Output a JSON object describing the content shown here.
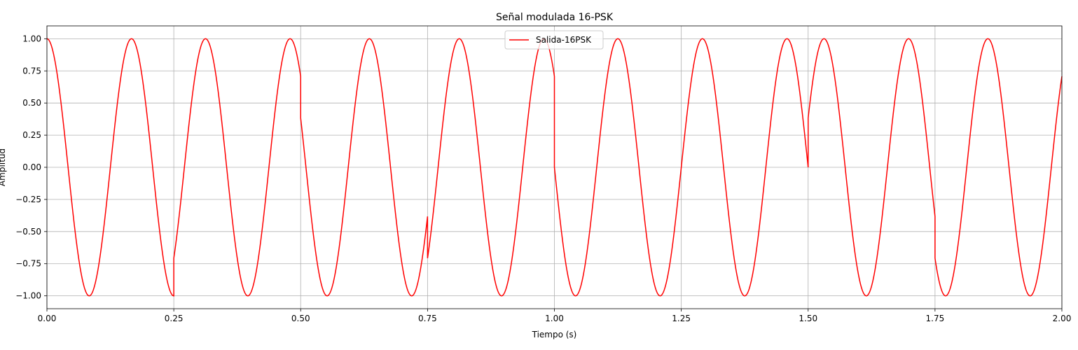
{
  "chart_data": {
    "type": "line",
    "title": "Señal modulada 16-PSK",
    "xlabel": "Tiempo (s)",
    "ylabel": "Amplitud",
    "xlim": [
      0,
      2
    ],
    "ylim": [
      -1.1,
      1.1
    ],
    "xticks": [
      0,
      0.25,
      0.5,
      0.75,
      1.0,
      1.25,
      1.5,
      1.75,
      2.0
    ],
    "xtick_labels": [
      "0.00",
      "0.25",
      "0.50",
      "0.75",
      "1.00",
      "1.25",
      "1.50",
      "1.75",
      "2.00"
    ],
    "yticks": [
      -1.0,
      -0.75,
      -0.5,
      -0.25,
      0.0,
      0.25,
      0.5,
      0.75,
      1.0
    ],
    "ytick_labels": [
      "−1.00",
      "−0.75",
      "−0.50",
      "−0.25",
      "0.00",
      "0.25",
      "0.50",
      "0.75",
      "1.00"
    ],
    "grid": true,
    "legend_position": "top-center",
    "series": [
      {
        "name": "Salida-16PSK",
        "color": "#ff0000",
        "carrier_frequency_hz": 6,
        "symbol_duration_s": 0.25,
        "symbols": [
          {
            "t_start": 0.0,
            "t_end": 0.25,
            "phase_deg": 0
          },
          {
            "t_start": 0.25,
            "t_end": 0.5,
            "phase_deg": 45
          },
          {
            "t_start": 0.5,
            "t_end": 0.75,
            "phase_deg": 67.5
          },
          {
            "t_start": 0.75,
            "t_end": 1.0,
            "phase_deg": 45
          },
          {
            "t_start": 1.0,
            "t_end": 1.25,
            "phase_deg": 90
          },
          {
            "t_start": 1.25,
            "t_end": 1.5,
            "phase_deg": 90
          },
          {
            "t_start": 1.5,
            "t_end": 1.75,
            "phase_deg": 292.5
          },
          {
            "t_start": 1.75,
            "t_end": 2.0,
            "phase_deg": 315
          }
        ]
      }
    ]
  }
}
